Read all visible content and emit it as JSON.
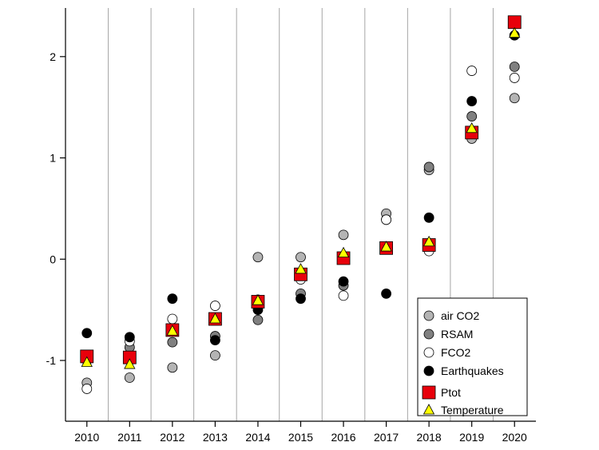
{
  "chart_data": {
    "type": "scatter",
    "xlabel": "",
    "ylabel": "",
    "ylim": [
      -1.6,
      2.48
    ],
    "categories": [
      "2010",
      "2011",
      "2012",
      "2013",
      "2014",
      "2015",
      "2016",
      "2017",
      "2018",
      "2019",
      "2020"
    ],
    "y_ticks": [
      -1,
      0,
      1,
      2
    ],
    "y_tick_labels": [
      "-1",
      "0",
      "1",
      "2"
    ],
    "grid": "vertical lines between years",
    "legend_position": "bottom-right",
    "series": [
      {
        "name": "air CO2",
        "marker": "circle",
        "color": "#b4b4b4",
        "values": [
          -1.22,
          -1.17,
          -1.07,
          -0.95,
          0.02,
          0.02,
          0.24,
          0.45,
          0.88,
          1.19,
          1.59
        ]
      },
      {
        "name": "RSAM",
        "marker": "circle",
        "color": "#808080",
        "values": [
          -1.0,
          -0.87,
          -0.82,
          -0.76,
          -0.6,
          -0.34,
          -0.26,
          0.39,
          0.91,
          1.41,
          1.9
        ]
      },
      {
        "name": "FCO2",
        "marker": "circle",
        "color": "#ffffff",
        "values": [
          -1.28,
          -0.81,
          -0.59,
          -0.46,
          -0.4,
          -0.2,
          -0.36,
          0.39,
          0.08,
          1.86,
          1.79
        ]
      },
      {
        "name": "Earthquakes",
        "marker": "circle",
        "color": "#000000",
        "values": [
          -0.73,
          -0.77,
          -0.39,
          -0.8,
          -0.5,
          -0.39,
          -0.22,
          -0.34,
          0.41,
          1.56,
          2.21
        ]
      },
      {
        "name": "Ptot",
        "marker": "square",
        "color": "#e8000b",
        "values": [
          -0.96,
          -0.97,
          -0.7,
          -0.59,
          -0.42,
          -0.15,
          0.01,
          0.11,
          0.14,
          1.25,
          2.34
        ]
      },
      {
        "name": "Temperature",
        "marker": "triangle",
        "color": "#ffff00",
        "values": [
          -1.02,
          -1.04,
          -0.71,
          -0.59,
          -0.41,
          -0.1,
          0.06,
          0.12,
          0.17,
          1.29,
          2.23
        ]
      }
    ]
  }
}
